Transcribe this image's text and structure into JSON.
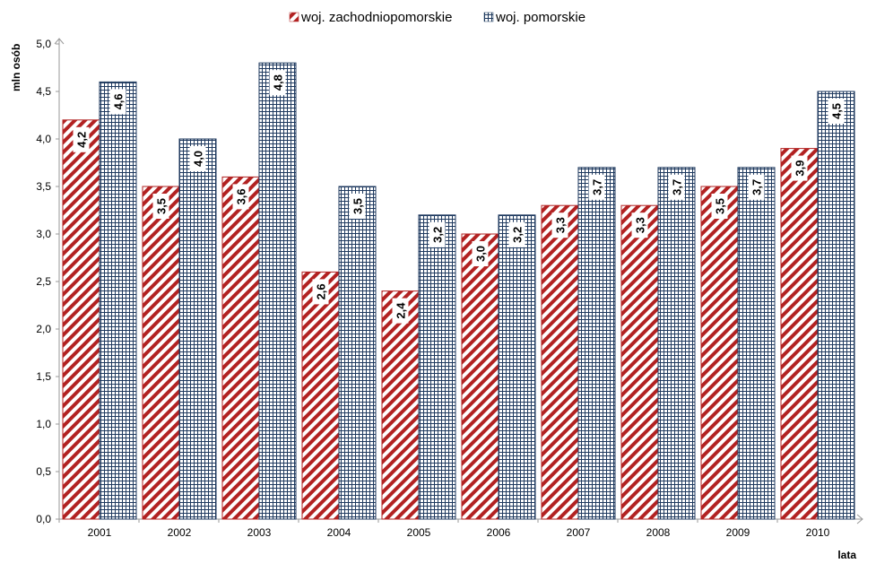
{
  "chart_data": {
    "type": "bar",
    "categories": [
      "2001",
      "2002",
      "2003",
      "2004",
      "2005",
      "2006",
      "2007",
      "2008",
      "2009",
      "2010"
    ],
    "series": [
      {
        "name": "woj. zachodniopomorskie",
        "values": [
          4.2,
          3.5,
          3.6,
          2.6,
          2.4,
          3.0,
          3.3,
          3.3,
          3.5,
          3.9
        ],
        "labels": [
          "4,2",
          "3,5",
          "3,6",
          "2,6",
          "2,4",
          "3,0",
          "3,3",
          "3,3",
          "3,5",
          "3,9"
        ],
        "color": "#b22222",
        "pattern": "diagonal-stripes"
      },
      {
        "name": "woj. pomorskie",
        "values": [
          4.6,
          4.0,
          4.8,
          3.5,
          3.2,
          3.2,
          3.7,
          3.7,
          3.7,
          4.5
        ],
        "labels": [
          "4,6",
          "4,0",
          "4,8",
          "3,5",
          "3,2",
          "3,2",
          "3,7",
          "3,7",
          "3,7",
          "4,5"
        ],
        "color": "#1f3a5f",
        "pattern": "grid"
      }
    ],
    "ylim": [
      0,
      5.0
    ],
    "yticks": [
      "0,0",
      "0,5",
      "1,0",
      "1,5",
      "2,0",
      "2,5",
      "3,0",
      "3,5",
      "4,0",
      "4,5",
      "5,0"
    ],
    "xlabel": "lata",
    "ylabel": "mln osób",
    "grid": false,
    "legend": "top"
  }
}
